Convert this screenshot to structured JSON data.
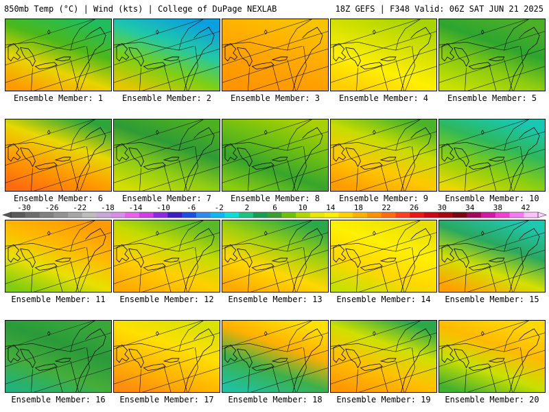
{
  "header": {
    "left": "850mb Temp (°C) | Wind (kts) | College of DuPage NEXLAB",
    "right": "18Z GEFS | F348 Valid: 06Z SAT JUN 21 2025"
  },
  "panels": [
    {
      "label": "Ensemble Member: 1",
      "colors": [
        "#1fbd5c",
        "#4cb81a",
        "#e8d400",
        "#ff9900"
      ]
    },
    {
      "label": "Ensemble Member: 2",
      "colors": [
        "#0aa0e0",
        "#21c8a6",
        "#7fcf13",
        "#e6c600"
      ]
    },
    {
      "label": "Ensemble Member: 3",
      "colors": [
        "#f7c400",
        "#ffb000",
        "#ffa000",
        "#ff9400"
      ]
    },
    {
      "label": "Ensemble Member: 4",
      "colors": [
        "#a8d400",
        "#d7e200",
        "#fff000",
        "#ffcc00"
      ]
    },
    {
      "label": "Ensemble Member: 5",
      "colors": [
        "#4caf28",
        "#2da52f",
        "#8ccc10",
        "#c9e000"
      ]
    },
    {
      "label": "Ensemble Member: 6",
      "colors": [
        "#2ea53a",
        "#e8d800",
        "#ff9b00",
        "#ff6a10"
      ]
    },
    {
      "label": "Ensemble Member: 7",
      "colors": [
        "#4cb01f",
        "#2e9b36",
        "#8dcc15",
        "#d4de00"
      ]
    },
    {
      "label": "Ensemble Member: 8",
      "colors": [
        "#a9d000",
        "#6fbf12",
        "#36a52c",
        "#8acc10"
      ]
    },
    {
      "label": "Ensemble Member: 9",
      "colors": [
        "#49b42a",
        "#c6dc00",
        "#ffc800",
        "#ff9a00"
      ]
    },
    {
      "label": "Ensemble Member: 10",
      "colors": [
        "#18c8b4",
        "#2db85c",
        "#8ccf10",
        "#e8d800"
      ]
    },
    {
      "label": "Ensemble Member: 11",
      "colors": [
        "#ff9a00",
        "#ffb800",
        "#e8e000",
        "#7fcc12"
      ]
    },
    {
      "label": "Ensemble Member: 12",
      "colors": [
        "#5ab82a",
        "#c3dc00",
        "#ffd000",
        "#ffaa00"
      ]
    },
    {
      "label": "Ensemble Member: 13",
      "colors": [
        "#2aa84a",
        "#9ccf10",
        "#ffd800",
        "#ffa800"
      ]
    },
    {
      "label": "Ensemble Member: 14",
      "colors": [
        "#e6e000",
        "#fff000",
        "#ffd800",
        "#c8e000"
      ]
    },
    {
      "label": "Ensemble Member: 15",
      "colors": [
        "#1ec8b0",
        "#2aa860",
        "#d4e000",
        "#ffa000"
      ]
    },
    {
      "label": "Ensemble Member: 16",
      "colors": [
        "#38a83a",
        "#2a9a3a",
        "#44ad3a",
        "#22b27a"
      ]
    },
    {
      "label": "Ensemble Member: 17",
      "colors": [
        "#d9e200",
        "#ffe000",
        "#ffb800",
        "#ff8c10"
      ]
    },
    {
      "label": "Ensemble Member: 18",
      "colors": [
        "#ffe000",
        "#ffb000",
        "#3db04a",
        "#20c0a0"
      ]
    },
    {
      "label": "Ensemble Member: 19",
      "colors": [
        "#2aa84a",
        "#d0e000",
        "#ffc000",
        "#ff9800"
      ]
    },
    {
      "label": "Ensemble Member: 20",
      "colors": [
        "#ffd800",
        "#ffba00",
        "#c8e000",
        "#44b030"
      ]
    }
  ],
  "colorbar": {
    "labels": [
      "-30",
      "-26",
      "-22",
      "-18",
      "-14",
      "-10",
      "-6",
      "-2",
      "2",
      "6",
      "10",
      "14",
      "18",
      "22",
      "26",
      "30",
      "34",
      "38",
      "42"
    ],
    "colors": [
      "#5a5a5a",
      "#6d6d6d",
      "#808080",
      "#939393",
      "#a6a6a6",
      "#bdbdbd",
      "#c8a8d8",
      "#d78fe6",
      "#ea60ea",
      "#d23ce8",
      "#8a2be2",
      "#3a1fc0",
      "#1c4fe0",
      "#2a8cf0",
      "#14b4f0",
      "#10dcd8",
      "#20c080",
      "#14a050",
      "#38a030",
      "#70c010",
      "#b2d600",
      "#e8e800",
      "#fff000",
      "#ffd200",
      "#ffb000",
      "#ff9000",
      "#ff6c10",
      "#ff4020",
      "#e81818",
      "#c80818",
      "#a00a10",
      "#7a0810",
      "#a4085a",
      "#d218a0",
      "#f040d0",
      "#f878f0",
      "#ffc0ff"
    ]
  },
  "chart_data": {
    "type": "heatmap",
    "title": "850mb Temp (°C) | Wind (kts)",
    "source": "College of DuPage NEXLAB",
    "run": "18Z GEFS | F348 Valid: 06Z SAT JUN 21 2025",
    "members": [
      "Ensemble Member: 1",
      "Ensemble Member: 2",
      "Ensemble Member: 3",
      "Ensemble Member: 4",
      "Ensemble Member: 5",
      "Ensemble Member: 6",
      "Ensemble Member: 7",
      "Ensemble Member: 8",
      "Ensemble Member: 9",
      "Ensemble Member: 10",
      "Ensemble Member: 11",
      "Ensemble Member: 12",
      "Ensemble Member: 13",
      "Ensemble Member: 14",
      "Ensemble Member: 15",
      "Ensemble Member: 16",
      "Ensemble Member: 17",
      "Ensemble Member: 18",
      "Ensemble Member: 19",
      "Ensemble Member: 20"
    ],
    "colorbar_ticks": [
      -30,
      -26,
      -22,
      -18,
      -14,
      -10,
      -6,
      -2,
      2,
      6,
      10,
      14,
      18,
      22,
      26,
      30,
      34,
      38,
      42
    ],
    "colorbar_range": [
      -30,
      42
    ]
  }
}
